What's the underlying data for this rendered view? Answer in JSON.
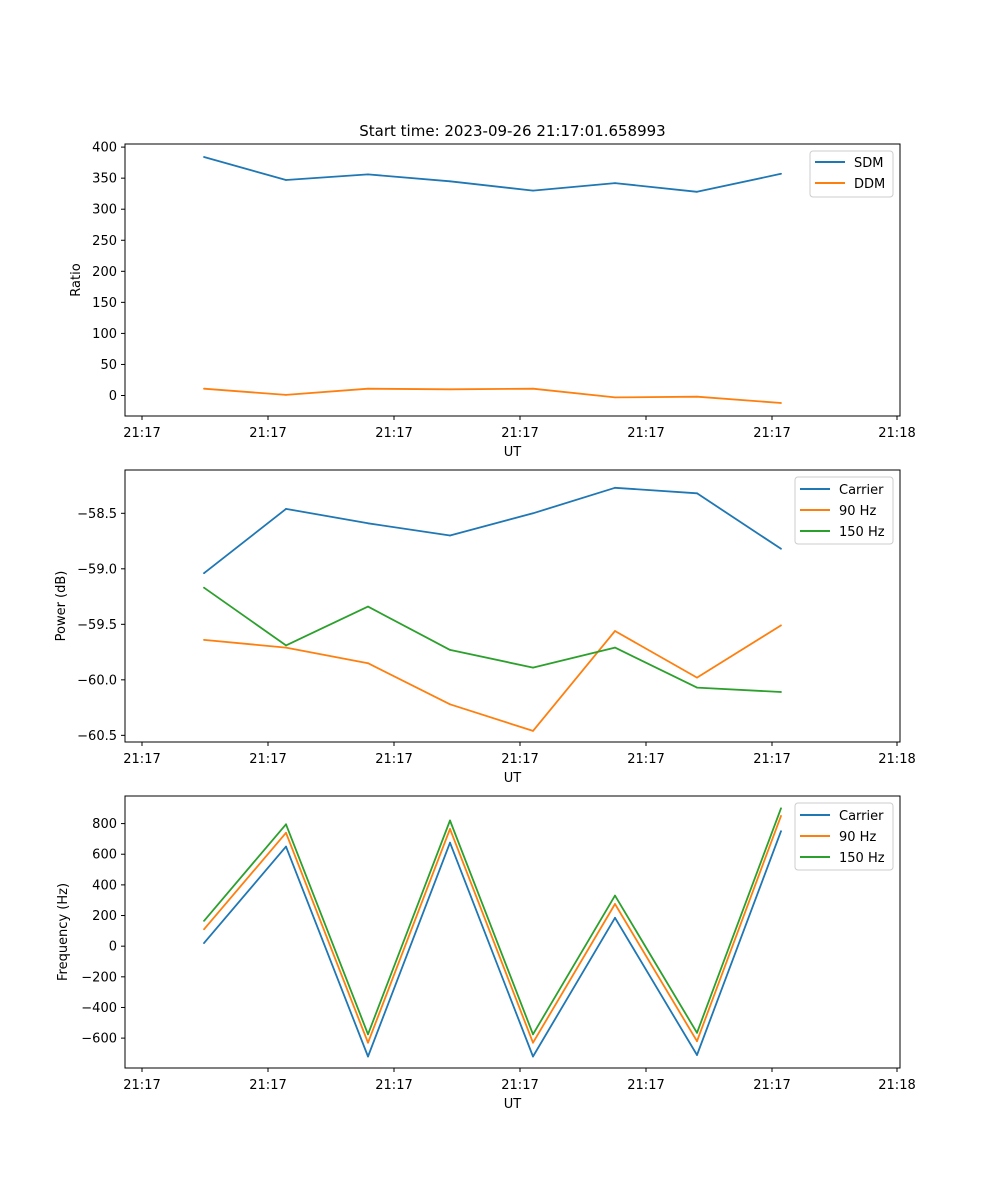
{
  "chart_data": [
    {
      "type": "line",
      "title": "Start time: 2023-09-26 21:17:01.658993",
      "xlabel": "UT",
      "ylabel": "Ratio",
      "x_tick_labels": [
        "21:17",
        "21:17",
        "21:17",
        "21:17",
        "21:17",
        "21:17"
      ],
      "x_last_tick_label": "21:18",
      "ylim": [
        -33,
        405
      ],
      "yticks": [
        0,
        50,
        100,
        150,
        200,
        250,
        300,
        350,
        400
      ],
      "ytick_labels": [
        "0",
        "50",
        "100",
        "150",
        "200",
        "250",
        "300",
        "350",
        "400"
      ],
      "legend_position": "upper right",
      "series": [
        {
          "name": "SDM",
          "color": "#1f77b4",
          "values": [
            384,
            347,
            356,
            345,
            330,
            342,
            328,
            357
          ]
        },
        {
          "name": "DDM",
          "color": "#ff7f0e",
          "values": [
            11,
            1,
            11,
            10,
            11,
            -3,
            -2,
            -12
          ]
        }
      ]
    },
    {
      "type": "line",
      "title": "",
      "xlabel": "UT",
      "ylabel": "Power (dB)",
      "x_tick_labels": [
        "21:17",
        "21:17",
        "21:17",
        "21:17",
        "21:17",
        "21:17"
      ],
      "x_last_tick_label": "21:18",
      "ylim": [
        -60.56,
        -58.11
      ],
      "yticks": [
        -60.5,
        -60.0,
        -59.5,
        -59.0,
        -58.5
      ],
      "ytick_labels": [
        "−60.5",
        "−60.0",
        "−59.5",
        "−59.0",
        "−58.5"
      ],
      "legend_position": "upper right",
      "series": [
        {
          "name": "Carrier",
          "color": "#1f77b4",
          "values": [
            -59.04,
            -58.46,
            -58.59,
            -58.7,
            -58.5,
            -58.27,
            -58.32,
            -58.82
          ]
        },
        {
          "name": "90 Hz",
          "color": "#ff7f0e",
          "values": [
            -59.64,
            -59.71,
            -59.85,
            -60.22,
            -60.46,
            -59.56,
            -59.98,
            -59.51
          ]
        },
        {
          "name": "150 Hz",
          "color": "#2ca02c",
          "values": [
            -59.17,
            -59.69,
            -59.34,
            -59.73,
            -59.89,
            -59.71,
            -60.07,
            -60.11
          ]
        }
      ]
    },
    {
      "type": "line",
      "title": "",
      "xlabel": "UT",
      "ylabel": "Frequency (Hz)",
      "x_tick_labels": [
        "21:17",
        "21:17",
        "21:17",
        "21:17",
        "21:17",
        "21:17"
      ],
      "x_last_tick_label": "21:18",
      "ylim": [
        -795,
        980
      ],
      "yticks": [
        -600,
        -400,
        -200,
        0,
        200,
        400,
        600,
        800
      ],
      "ytick_labels": [
        "−600",
        "−400",
        "−200",
        "0",
        "200",
        "400",
        "600",
        "800"
      ],
      "legend_position": "upper right",
      "series": [
        {
          "name": "Carrier",
          "color": "#1f77b4",
          "values": [
            20,
            650,
            -720,
            675,
            -720,
            185,
            -710,
            750
          ]
        },
        {
          "name": "90 Hz",
          "color": "#ff7f0e",
          "values": [
            110,
            740,
            -630,
            765,
            -630,
            275,
            -620,
            850
          ]
        },
        {
          "name": "150 Hz",
          "color": "#2ca02c",
          "values": [
            165,
            795,
            -575,
            820,
            -575,
            330,
            -565,
            900
          ]
        }
      ]
    }
  ]
}
